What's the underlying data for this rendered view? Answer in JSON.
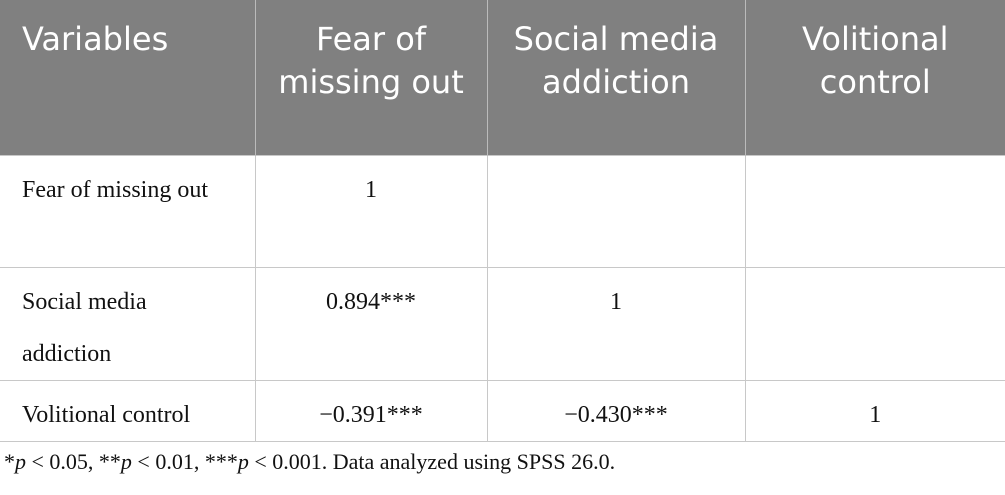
{
  "table": {
    "header": [
      "Variables",
      "Fear of missing out",
      "Social media addiction",
      "Volitional control"
    ],
    "rows": [
      [
        "Fear of missing out",
        "1",
        null,
        null
      ],
      [
        "Social media addiction",
        "0.894***",
        "1",
        null
      ],
      [
        "Volitional control",
        "−0.391***",
        "−0.430***",
        "1"
      ]
    ]
  },
  "footnote": [
    "*",
    "p",
    " < 0.05, **",
    "p",
    " < 0.01, ***",
    "p",
    " < 0.001. Data analyzed using SPSS 26.0."
  ]
}
